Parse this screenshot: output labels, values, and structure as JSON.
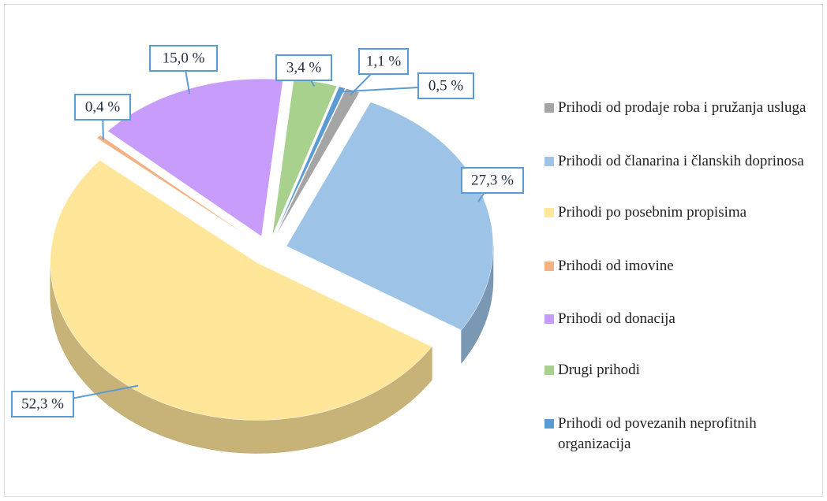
{
  "chart_data": {
    "type": "pie",
    "categories": [
      "Prihodi od prodaje roba i pružanja usluga",
      "Prihodi od članarina i članskih doprinosa",
      "Prihodi po posebnim propisima",
      "Prihodi od imovine",
      "Prihodi od donacija",
      "Drugi prihodi",
      "Prihodi od povezanih neprofitnih organizacija"
    ],
    "values": [
      1.1,
      27.3,
      52.3,
      0.4,
      15.0,
      3.4,
      0.5
    ],
    "value_labels": [
      "1,1 %",
      "27,3 %",
      "52,3 %",
      "0,4 %",
      "15,0 %",
      "3,4 %",
      "0,5 %"
    ],
    "colors": [
      "#a5a5a5",
      "#9dc3e6",
      "#ffe699",
      "#f4b183",
      "#c79cfa",
      "#a9d18e",
      "#5b9bd5"
    ],
    "legend": "right"
  }
}
